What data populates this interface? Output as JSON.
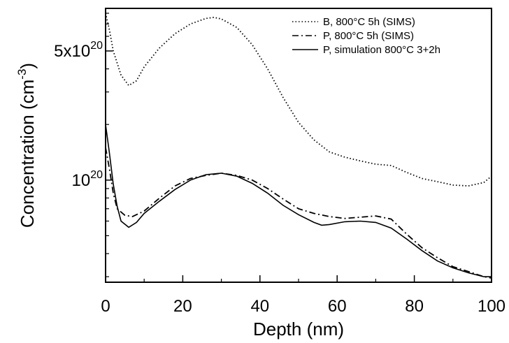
{
  "chart_data": {
    "type": "line",
    "xlabel": "Depth (nm)",
    "ylabel_main": "Concentration (cm",
    "ylabel_sup": "-3",
    "ylabel_close": ")",
    "xlim": [
      0,
      100
    ],
    "ylim": [
      2.8e+19,
      8.5e+20
    ],
    "yscale": "log",
    "grid": false,
    "legend_position": "top-right",
    "x_ticks": [
      {
        "value": 0,
        "label": "0"
      },
      {
        "value": 20,
        "label": "20"
      },
      {
        "value": 40,
        "label": "40"
      },
      {
        "value": 60,
        "label": "60"
      },
      {
        "value": 80,
        "label": "80"
      },
      {
        "value": 100,
        "label": "100"
      }
    ],
    "y_ticks": [
      {
        "value": 1e+20,
        "base": "10",
        "exp": "20"
      },
      {
        "value": 5e+20,
        "base": "5x10",
        "exp": "20"
      }
    ],
    "series": [
      {
        "name": "B, 800°C 5h (SIMS)",
        "style": "dotted",
        "color": "#000000",
        "x": [
          0,
          1,
          2,
          4,
          6,
          8,
          10,
          14,
          18,
          22,
          26,
          28,
          30,
          34,
          38,
          42,
          46,
          50,
          54,
          58,
          62,
          66,
          70,
          74,
          78,
          82,
          86,
          90,
          94,
          98,
          100
        ],
        "y": [
          8e+20,
          6.5e+20,
          5e+20,
          3.7e+20,
          3.25e+20,
          3.45e+20,
          4.1e+20,
          5.2e+20,
          6.2e+20,
          7e+20,
          7.5e+20,
          7.6e+20,
          7.45e+20,
          6.7e+20,
          5.4e+20,
          4e+20,
          2.8e+20,
          2.05e+20,
          1.65e+20,
          1.42e+20,
          1.33e+20,
          1.27e+20,
          1.22e+20,
          1.2e+20,
          1.1e+20,
          1.02e+20,
          9.8e+19,
          9.4e+19,
          9.3e+19,
          9.7e+19,
          1.05e+20
        ]
      },
      {
        "name": "P, 800°C 5h (SIMS)",
        "style": "dashdot",
        "color": "#000000",
        "x": [
          0,
          1,
          2,
          3,
          5,
          7,
          10,
          14,
          18,
          22,
          26,
          30,
          34,
          38,
          42,
          46,
          50,
          54,
          58,
          62,
          66,
          70,
          74,
          78,
          82,
          86,
          90,
          94,
          98,
          100
        ],
        "y": [
          1.5e+20,
          1.15e+20,
          8.5e+19,
          7e+19,
          6.45e+19,
          6.35e+19,
          6.8e+19,
          8e+19,
          9.3e+19,
          1.02e+20,
          1.06e+20,
          1.09e+20,
          1.06e+20,
          1e+20,
          9e+19,
          7.9e+19,
          7e+19,
          6.6e+19,
          6.35e+19,
          6.2e+19,
          6.3e+19,
          6.4e+19,
          6.15e+19,
          5.1e+19,
          4.3e+19,
          3.8e+19,
          3.4e+19,
          3.2e+19,
          3e+19,
          2.95e+19
        ]
      },
      {
        "name": "P, simulation 800°C 3+2h",
        "style": "solid",
        "color": "#000000",
        "x": [
          0,
          1,
          2,
          3,
          4,
          6,
          8,
          10,
          14,
          18,
          22,
          26,
          30,
          34,
          38,
          42,
          46,
          50,
          54,
          56,
          58,
          62,
          66,
          70,
          74,
          78,
          82,
          86,
          90,
          94,
          98,
          100
        ],
        "y": [
          2e+20,
          1.4e+20,
          9.5e+19,
          7.2e+19,
          6e+19,
          5.55e+19,
          5.9e+19,
          6.6e+19,
          7.7e+19,
          8.9e+19,
          1e+20,
          1.07e+20,
          1.09e+20,
          1.05e+20,
          9.6e+19,
          8.5e+19,
          7.3e+19,
          6.5e+19,
          5.9e+19,
          5.7e+19,
          5.75e+19,
          5.95e+19,
          6e+19,
          5.9e+19,
          5.5e+19,
          4.8e+19,
          4.15e+19,
          3.65e+19,
          3.35e+19,
          3.15e+19,
          3e+19,
          3e+19
        ]
      }
    ]
  }
}
